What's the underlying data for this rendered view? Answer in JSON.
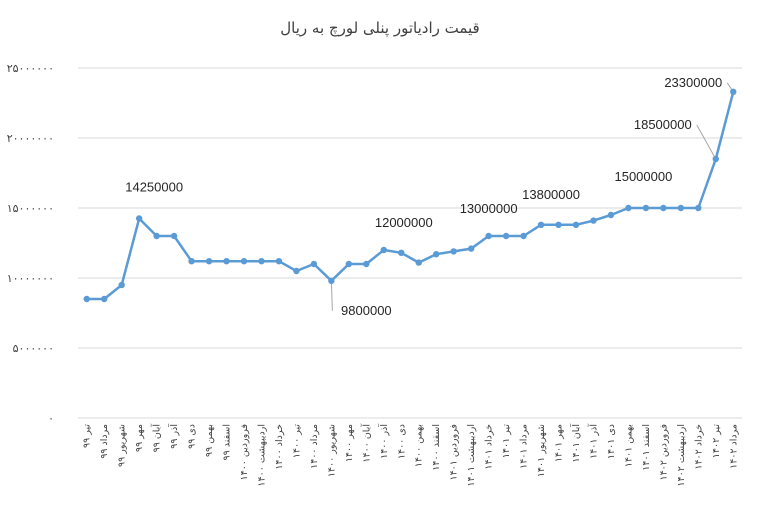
{
  "chart_data": {
    "type": "line",
    "title": "قیمت رادیاتور پنلی لورچ به ریال",
    "ylim": [
      0,
      25000000
    ],
    "yticks": [
      0,
      5000000,
      10000000,
      15000000,
      20000000,
      25000000
    ],
    "ytick_labels": [
      "۰",
      "۵۰۰۰۰۰۰",
      "۱۰۰۰۰۰۰۰",
      "۱۵۰۰۰۰۰۰",
      "۲۰۰۰۰۰۰۰",
      "۲۵۰۰۰۰۰۰"
    ],
    "grid": "horizontal",
    "legend": "none",
    "line_color": "#5b9bd5",
    "categories": [
      "تیر ۹۹",
      "مرداد ۹۹",
      "شهریور ۹۹",
      "مهر ۹۹",
      "آبان ۹۹",
      "آذر ۹۹",
      "دی ۹۹",
      "بهمن ۹۹",
      "اسفند ۹۹",
      "فروردین ۱۴۰۰",
      "اردیبهشت ۱۴۰۰",
      "خرداد ۱۴۰۰",
      "تیر ۱۴۰۰",
      "مرداد ۱۴۰۰",
      "شهریور ۱۴۰۰",
      "مهر ۱۴۰۰",
      "آبان ۱۴۰۰",
      "آذر ۱۴۰۰",
      "دی ۱۴۰۰",
      "بهمن ۱۴۰۰",
      "اسفند ۱۴۰۰",
      "فروردین ۱۴۰۱",
      "اردیبهشت ۱۴۰۱",
      "خرداد ۱۴۰۱",
      "تیر ۱۴۰۱",
      "مرداد ۱۴۰۱",
      "شهریور ۱۴۰۱",
      "مهر ۱۴۰۱",
      "آبان ۱۴۰۱",
      "آذر ۱۴۰۱",
      "دی ۱۴۰۱",
      "بهمن ۱۴۰۱",
      "اسفند ۱۴۰۱",
      "فروردین ۱۴۰۲",
      "اردیبهشت ۱۴۰۲",
      "خرداد ۱۴۰۲",
      "تیر ۱۴۰۲",
      "مرداد ۱۴۰۲"
    ],
    "values": [
      8500000,
      8500000,
      9500000,
      14250000,
      13000000,
      13000000,
      11200000,
      11200000,
      11200000,
      11200000,
      11200000,
      11200000,
      10500000,
      11000000,
      9800000,
      11000000,
      11000000,
      12000000,
      11800000,
      11100000,
      11700000,
      11900000,
      12100000,
      13000000,
      13000000,
      13000000,
      13800000,
      13800000,
      13800000,
      14100000,
      14500000,
      15000000,
      15000000,
      15000000,
      15000000,
      15000000,
      18500000,
      23300000
    ],
    "data_labels": [
      {
        "index": 3,
        "text": "14250000"
      },
      {
        "index": 14,
        "text": "9800000"
      },
      {
        "index": 17,
        "text": "12000000"
      },
      {
        "index": 23,
        "text": "13000000"
      },
      {
        "index": 26,
        "text": "13800000"
      },
      {
        "index": 31,
        "text": "15000000"
      },
      {
        "index": 36,
        "text": "18500000"
      },
      {
        "index": 37,
        "text": "23300000"
      }
    ]
  }
}
